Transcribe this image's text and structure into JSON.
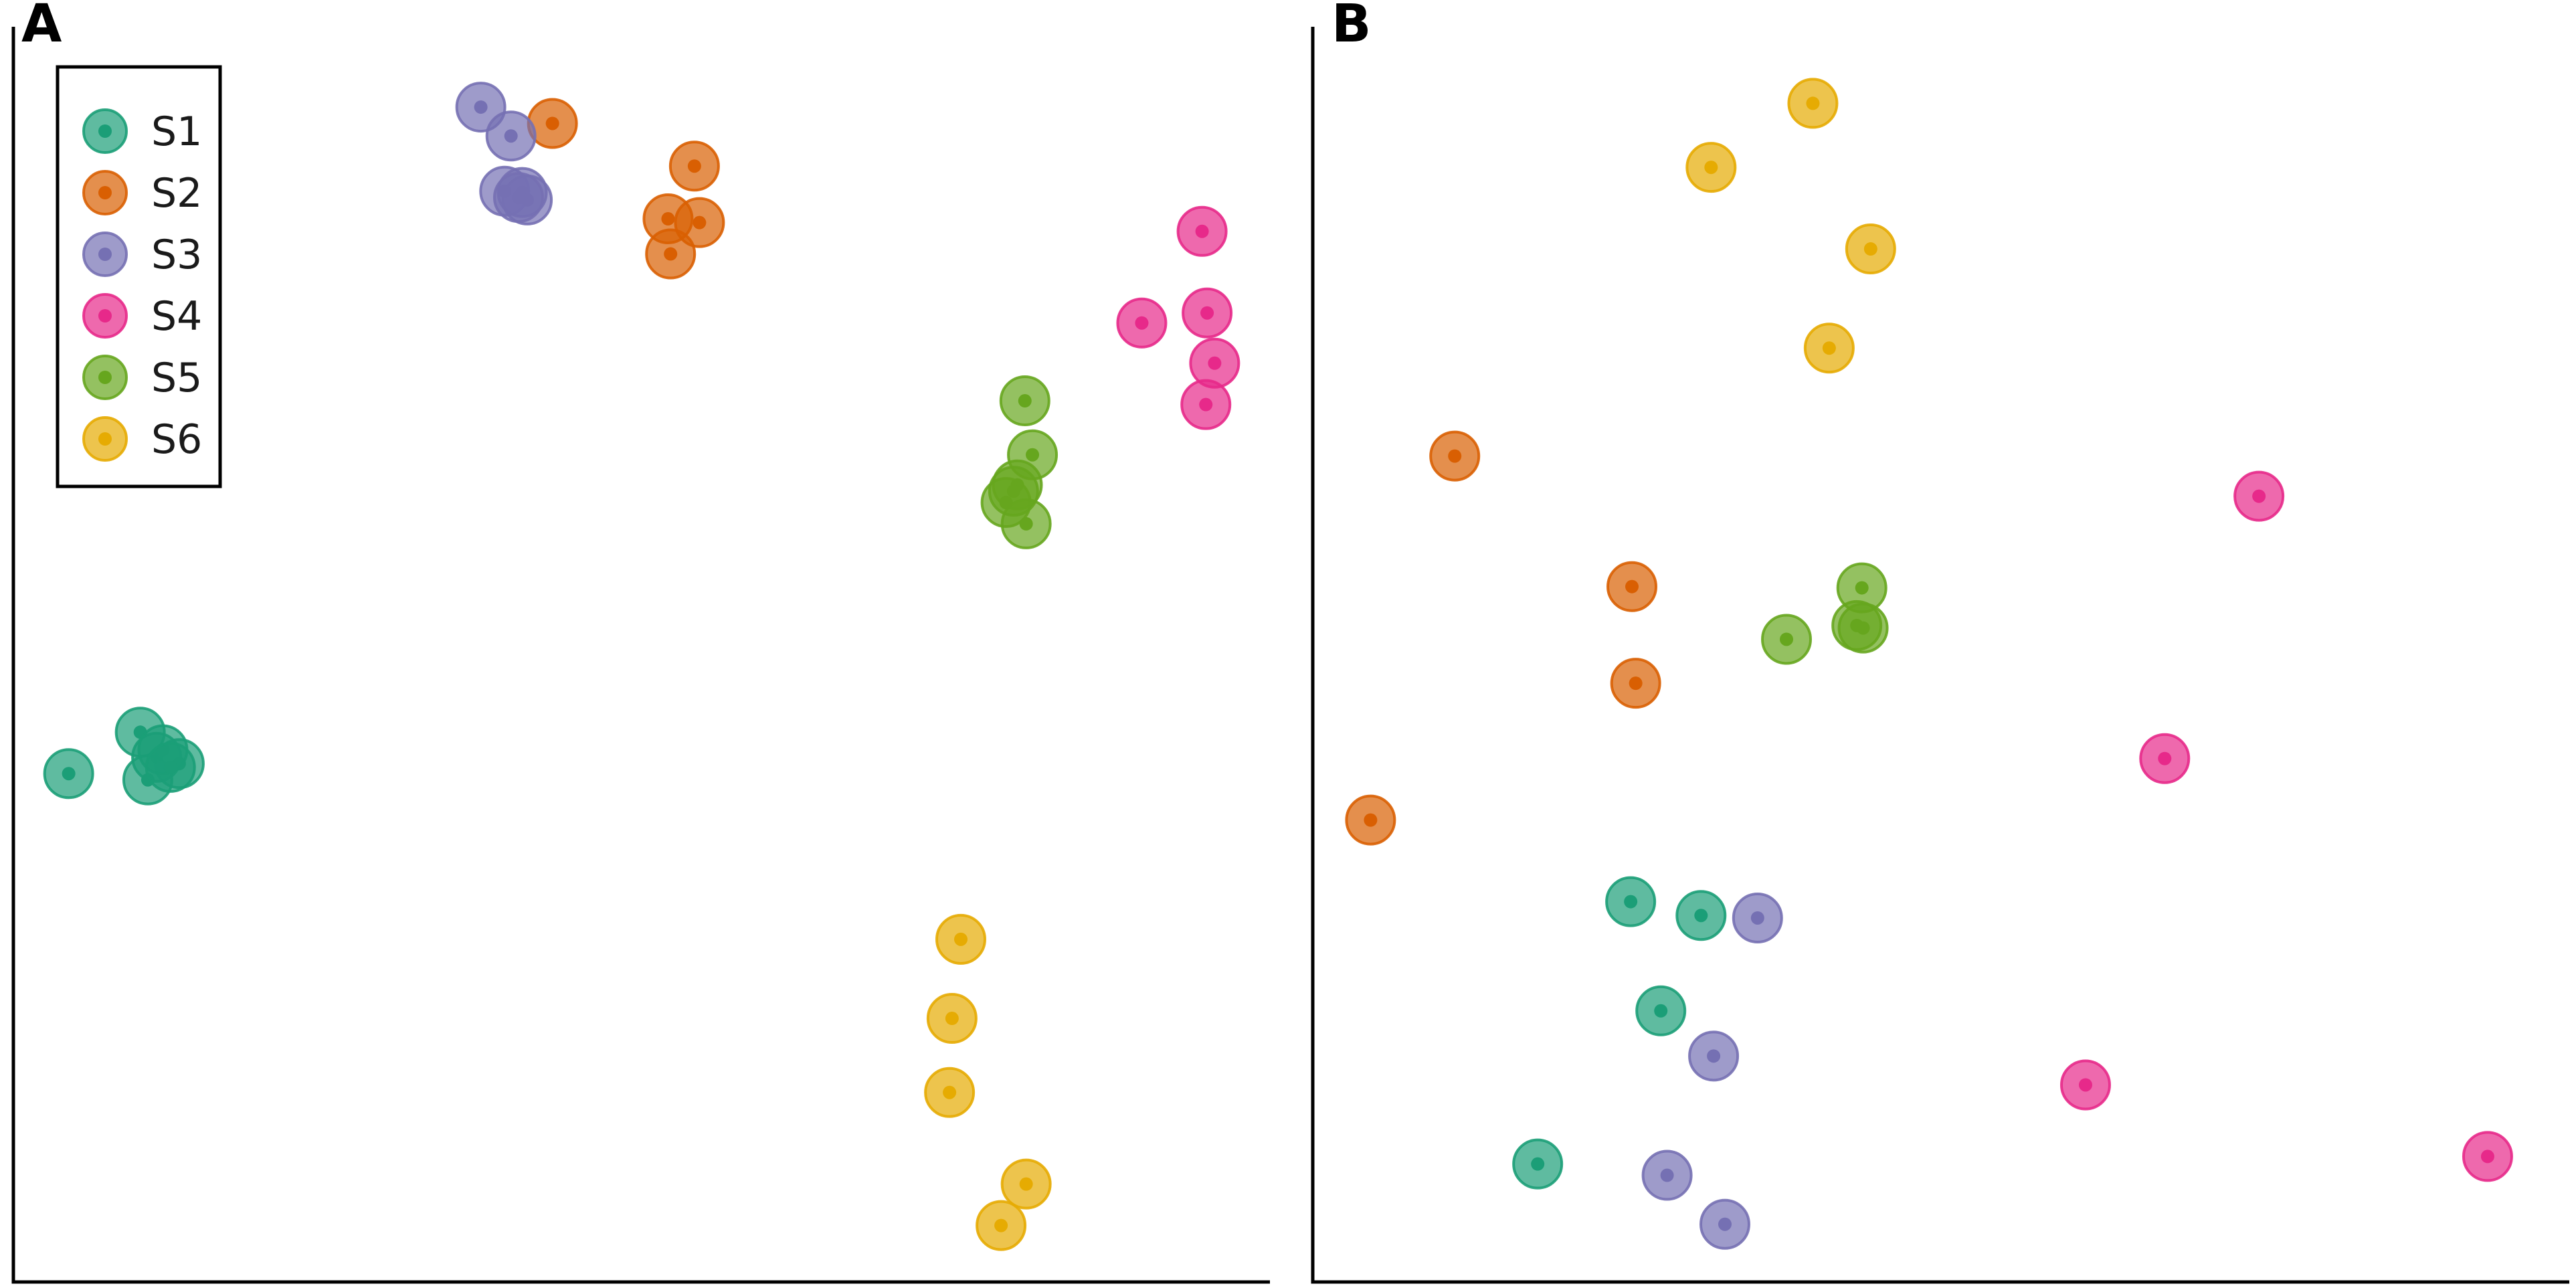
{
  "chart_data": [
    {
      "type": "scatter",
      "panel_label": "A",
      "title": "",
      "xlabel": "",
      "ylabel": "",
      "xlim": [
        0,
        100
      ],
      "ylim": [
        0,
        100
      ],
      "grid": false,
      "legend": {
        "position": "top-left",
        "entries": [
          "S1",
          "S2",
          "S3",
          "S4",
          "S5",
          "S6"
        ]
      },
      "series": [
        {
          "name": "S1",
          "color": "#1b9e77",
          "points": [
            [
              4.4,
              40.5
            ],
            [
              10.1,
              43.8
            ],
            [
              11.4,
              41.8
            ],
            [
              13.2,
              41.3
            ],
            [
              10.7,
              40.0
            ],
            [
              11.9,
              42.4
            ],
            [
              12.5,
              41.0
            ]
          ]
        },
        {
          "name": "S2",
          "color": "#d95f02",
          "points": [
            [
              42.9,
              92.3
            ],
            [
              54.2,
              88.9
            ],
            [
              52.1,
              84.7
            ],
            [
              54.6,
              84.4
            ],
            [
              52.3,
              81.9
            ]
          ]
        },
        {
          "name": "S3",
          "color": "#7570b3",
          "points": [
            [
              37.2,
              93.6
            ],
            [
              39.6,
              91.3
            ],
            [
              39.1,
              86.9
            ],
            [
              40.5,
              86.8
            ],
            [
              40.9,
              86.2
            ],
            [
              40.2,
              86.4
            ]
          ]
        },
        {
          "name": "S4",
          "color": "#e7298a",
          "points": [
            [
              94.6,
              83.7
            ],
            [
              89.8,
              76.4
            ],
            [
              95.0,
              77.2
            ],
            [
              95.6,
              73.2
            ],
            [
              94.9,
              69.9
            ]
          ]
        },
        {
          "name": "S5",
          "color": "#66a61e",
          "points": [
            [
              80.5,
              70.2
            ],
            [
              81.1,
              65.9
            ],
            [
              79.9,
              63.5
            ],
            [
              79.0,
              62.1
            ],
            [
              80.6,
              60.4
            ],
            [
              79.6,
              63.0
            ]
          ]
        },
        {
          "name": "S6",
          "color": "#e6ab02",
          "points": [
            [
              75.4,
              27.3
            ],
            [
              74.7,
              21.0
            ],
            [
              74.5,
              15.1
            ],
            [
              80.6,
              7.8
            ],
            [
              78.6,
              4.5
            ]
          ]
        }
      ]
    },
    {
      "type": "scatter",
      "panel_label": "B",
      "title": "",
      "xlabel": "",
      "ylabel": "",
      "xlim": [
        0,
        100
      ],
      "ylim": [
        0,
        100
      ],
      "grid": false,
      "legend": null,
      "series": [
        {
          "name": "S1",
          "color": "#1b9e77",
          "points": [
            [
              25.3,
              30.3
            ],
            [
              30.9,
              29.2
            ],
            [
              27.7,
              21.6
            ],
            [
              17.9,
              9.4
            ]
          ]
        },
        {
          "name": "S2",
          "color": "#d95f02",
          "points": [
            [
              11.3,
              65.8
            ],
            [
              25.4,
              55.4
            ],
            [
              25.7,
              47.7
            ],
            [
              4.6,
              36.8
            ]
          ]
        },
        {
          "name": "S3",
          "color": "#7570b3",
          "points": [
            [
              35.4,
              29.0
            ],
            [
              31.9,
              18.0
            ],
            [
              28.2,
              8.5
            ],
            [
              32.8,
              4.6
            ]
          ]
        },
        {
          "name": "S4",
          "color": "#e7298a",
          "points": [
            [
              75.3,
              62.6
            ],
            [
              67.8,
              41.7
            ],
            [
              61.5,
              15.7
            ],
            [
              93.5,
              10.0
            ]
          ]
        },
        {
          "name": "S5",
          "color": "#66a61e",
          "points": [
            [
              43.7,
              55.3
            ],
            [
              37.7,
              51.2
            ],
            [
              43.3,
              52.3
            ],
            [
              43.8,
              52.1
            ]
          ]
        },
        {
          "name": "S6",
          "color": "#e6ab02",
          "points": [
            [
              39.8,
              93.9
            ],
            [
              31.7,
              88.8
            ],
            [
              44.4,
              82.3
            ],
            [
              41.1,
              74.4
            ]
          ]
        }
      ]
    }
  ]
}
